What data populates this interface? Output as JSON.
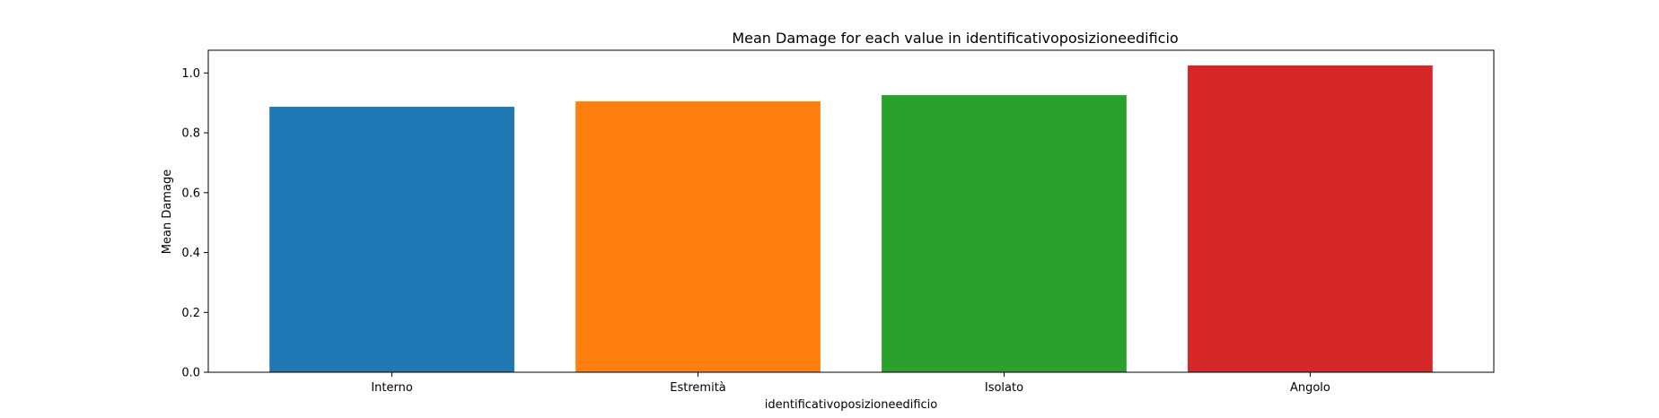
{
  "chart_data": {
    "type": "bar",
    "title": "Mean Damage for each value in identificativoposizioneedificio",
    "xlabel": "identificativoposizioneedificio",
    "ylabel": "Mean Damage",
    "categories": [
      "Interno",
      "Estremità",
      "Isolato",
      "Angolo"
    ],
    "values": [
      0.887,
      0.905,
      0.926,
      1.025
    ],
    "colors": [
      "#1f77b4",
      "#ff7f0e",
      "#2ca02c",
      "#d62728"
    ],
    "ylim": [
      0,
      1.076
    ],
    "yticks": [
      "0.0",
      "0.2",
      "0.4",
      "0.6",
      "0.8",
      "1.0"
    ],
    "grid": false,
    "legend": "none"
  }
}
